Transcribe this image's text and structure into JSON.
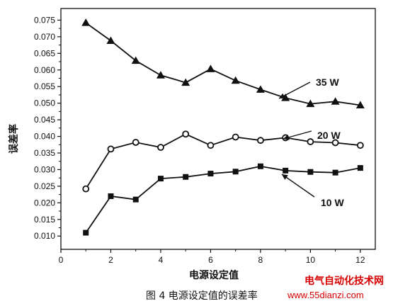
{
  "chart_data": {
    "type": "line",
    "ylabel": "误差率",
    "xlabel": "电源设定值",
    "xlim": [
      0,
      12.6
    ],
    "ylim": [
      0.006,
      0.0785
    ],
    "xticks": [
      0,
      2,
      4,
      6,
      8,
      10,
      12
    ],
    "yticks": [
      0.01,
      0.015,
      0.02,
      0.025,
      0.03,
      0.035,
      0.04,
      0.045,
      0.05,
      0.055,
      0.06,
      0.065,
      0.07,
      0.075
    ],
    "x": [
      1,
      2,
      3,
      4,
      5,
      6,
      7,
      8,
      9,
      10,
      11,
      12
    ],
    "series": [
      {
        "name": "35 W",
        "marker": "triangle",
        "values": [
          0.0742,
          0.0688,
          0.0628,
          0.0584,
          0.0562,
          0.0603,
          0.0568,
          0.0541,
          0.0516,
          0.0498,
          0.0505,
          0.0494
        ]
      },
      {
        "name": "20 W",
        "marker": "circle",
        "values": [
          0.0242,
          0.0362,
          0.0382,
          0.0367,
          0.0407,
          0.0373,
          0.0398,
          0.0388,
          0.0396,
          0.0384,
          0.0381,
          0.0373
        ]
      },
      {
        "name": "10 W",
        "marker": "square",
        "values": [
          0.011,
          0.022,
          0.021,
          0.0273,
          0.0278,
          0.0288,
          0.0294,
          0.031,
          0.0297,
          0.0293,
          0.0291,
          0.0305
        ]
      }
    ],
    "grid": false,
    "legend": "inline arrow labels"
  },
  "caption": "图 4 电源设定值的误差率",
  "watermark": {
    "site_name": "电气自动化技术网",
    "url": "www.55dianzi.com"
  },
  "colors": {
    "line": "#111111",
    "watermark": "#d60000"
  }
}
